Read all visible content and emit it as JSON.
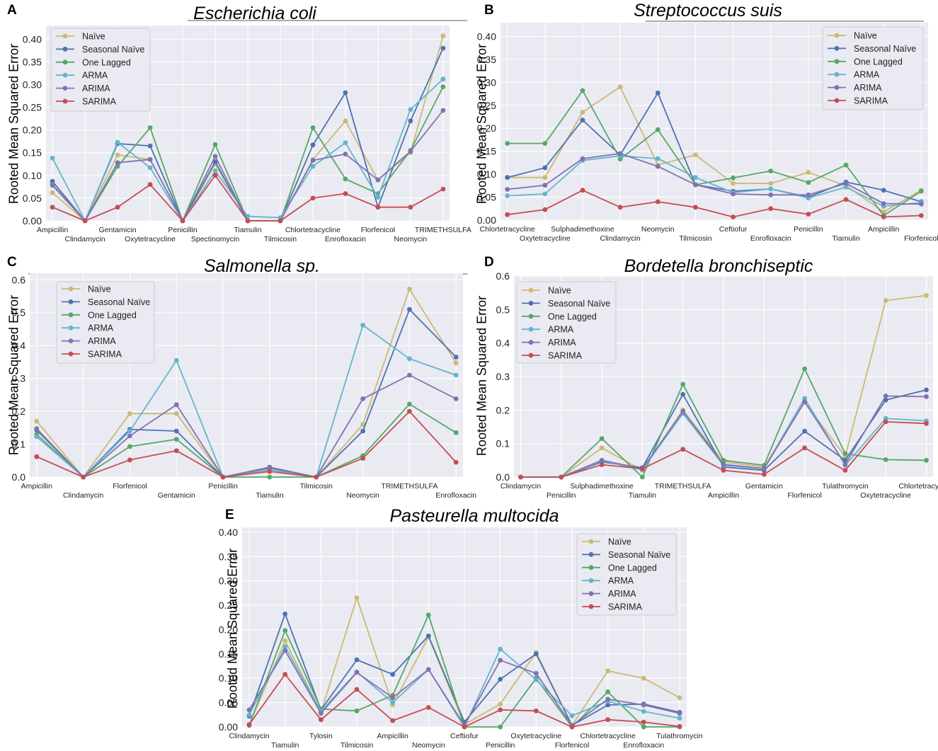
{
  "y_axis_label": "Rooted Mean Squared Error",
  "legend": [
    {
      "name": "Naïve",
      "color": "#ccb974"
    },
    {
      "name": "Seasonal Naïve",
      "color": "#4c72b0"
    },
    {
      "name": "One Lagged",
      "color": "#55a868"
    },
    {
      "name": "ARMA",
      "color": "#64b5cd"
    },
    {
      "name": "ARIMA",
      "color": "#8172b2"
    },
    {
      "name": "SARIMA",
      "color": "#c44e52"
    }
  ],
  "chart_data": [
    {
      "id": "A",
      "letter": "A",
      "type": "line",
      "title": "Escherichia coli",
      "ylabel": "Rooted Mean Squared Error",
      "ylim": [
        0,
        0.43
      ],
      "yticks": [
        "0.00",
        "0.05",
        "0.10",
        "0.15",
        "0.20",
        "0.25",
        "0.30",
        "0.35",
        "0.40"
      ],
      "categories": [
        "Ampicillin",
        "Clindamycin",
        "Gentamicin",
        "Oxytetracycline",
        "Penicillin",
        "Spectinomycin",
        "Tiamulin",
        "Tilmicosin",
        "Chlortetracycline",
        "Enrofloxacin",
        "Florfenicol",
        "Neomycin",
        "TRIMETHSULFA"
      ],
      "series": [
        {
          "name": "Naïve",
          "values": [
            0.062,
            0,
            0.145,
            0.135,
            0,
            0.125,
            0,
            0,
            0.135,
            0.22,
            0.09,
            0.15,
            0.407
          ]
        },
        {
          "name": "Seasonal Naïve",
          "values": [
            0.087,
            0,
            0.17,
            0.165,
            0,
            0.13,
            0,
            0,
            0.167,
            0.282,
            0.03,
            0.22,
            0.38
          ]
        },
        {
          "name": "One Lagged",
          "values": [
            0.08,
            0,
            0.12,
            0.205,
            0,
            0.168,
            0,
            0,
            0.205,
            0.092,
            0.06,
            0.155,
            0.295
          ]
        },
        {
          "name": "ARMA",
          "values": [
            0.138,
            0,
            0.173,
            0.117,
            0,
            0.11,
            0.01,
            0.007,
            0.12,
            0.172,
            0.052,
            0.245,
            0.312
          ]
        },
        {
          "name": "ARIMA",
          "values": [
            0.078,
            0,
            0.128,
            0.135,
            0,
            0.142,
            0,
            0,
            0.133,
            0.147,
            0.09,
            0.153,
            0.243
          ]
        },
        {
          "name": "SARIMA",
          "values": [
            0.03,
            0,
            0.03,
            0.08,
            0,
            0.1,
            0,
            0,
            0.05,
            0.06,
            0.03,
            0.03,
            0.07
          ]
        }
      ]
    },
    {
      "id": "B",
      "letter": "B",
      "type": "line",
      "title": "Streptococcus suis",
      "ylabel": "Rooted Mean Squared Error",
      "ylim": [
        0,
        0.43
      ],
      "yticks": [
        "0.00",
        "0.05",
        "0.10",
        "0.15",
        "0.20",
        "0.25",
        "0.30",
        "0.35",
        "0.40"
      ],
      "categories": [
        "Chlortetracycline",
        "Oxytetracycline",
        "Sulphadimethoxine",
        "Clindamycin",
        "Neomycin",
        "Tilmicosin",
        "Ceftiofur",
        "Enrofloxacin",
        "Penicillin",
        "Tiamulin",
        "Ampicillin",
        "Florfenicol"
      ],
      "series": [
        {
          "name": "Naïve",
          "values": [
            0.093,
            0.093,
            0.235,
            0.29,
            0.12,
            0.142,
            0.08,
            0.08,
            0.104,
            0.075,
            0.018,
            0.065
          ]
        },
        {
          "name": "Seasonal Naïve",
          "values": [
            0.093,
            0.114,
            0.218,
            0.142,
            0.277,
            0.077,
            0.063,
            0.068,
            0.05,
            0.083,
            0.065,
            0.04
          ]
        },
        {
          "name": "One Lagged",
          "values": [
            0.167,
            0.167,
            0.282,
            0.133,
            0.197,
            0.077,
            0.092,
            0.107,
            0.082,
            0.12,
            0.01,
            0.063
          ]
        },
        {
          "name": "ARMA",
          "values": [
            0.053,
            0.057,
            0.13,
            0.14,
            0.134,
            0.093,
            0.06,
            0.068,
            0.048,
            0.072,
            0.03,
            0.038
          ]
        },
        {
          "name": "ARIMA",
          "values": [
            0.067,
            0.076,
            0.134,
            0.145,
            0.117,
            0.077,
            0.057,
            0.055,
            0.055,
            0.08,
            0.036,
            0.035
          ]
        },
        {
          "name": "SARIMA",
          "values": [
            0.012,
            0.023,
            0.065,
            0.028,
            0.04,
            0.028,
            0.007,
            0.025,
            0.013,
            0.045,
            0.007,
            0.01
          ]
        }
      ]
    },
    {
      "id": "C",
      "letter": "C",
      "type": "line",
      "title": "Salmonella sp.",
      "ylabel": "Rooted Mean Squared Error",
      "ylim": [
        0,
        0.62
      ],
      "yticks": [
        "0.0",
        "0.1",
        "0.2",
        "0.3",
        "0.4",
        "0.5",
        "0.6"
      ],
      "categories": [
        "Ampicillin",
        "Clindamycin",
        "Florfenicol",
        "Gentamicin",
        "Penicillin",
        "Tiamulin",
        "Tilmicosin",
        "Neomycin",
        "TRIMETHSULFA",
        "Enrofloxacin"
      ],
      "series": [
        {
          "name": "Naïve",
          "values": [
            0.17,
            0,
            0.193,
            0.193,
            0,
            0.025,
            0,
            0.16,
            0.572,
            0.347
          ]
        },
        {
          "name": "Seasonal Naïve",
          "values": [
            0.143,
            0,
            0.145,
            0.14,
            0,
            0.03,
            0,
            0.14,
            0.51,
            0.365
          ]
        },
        {
          "name": "One Lagged",
          "values": [
            0.13,
            0,
            0.093,
            0.115,
            0,
            0,
            0,
            0.065,
            0.222,
            0.135
          ]
        },
        {
          "name": "ARMA",
          "values": [
            0.123,
            0,
            0.14,
            0.355,
            0,
            0.022,
            0,
            0.462,
            0.36,
            0.31
          ]
        },
        {
          "name": "ARIMA",
          "values": [
            0.147,
            0,
            0.125,
            0.22,
            0,
            0.028,
            0,
            0.238,
            0.31,
            0.238
          ]
        },
        {
          "name": "SARIMA",
          "values": [
            0.062,
            0,
            0.052,
            0.08,
            0,
            0.017,
            0,
            0.057,
            0.2,
            0.045
          ]
        }
      ]
    },
    {
      "id": "D",
      "letter": "D",
      "type": "line",
      "title": "Bordetella bronchiseptic",
      "ylabel": "Rooted Mean Squared Error",
      "ylim": [
        0,
        0.6
      ],
      "yticks": [
        "0.0",
        "0.1",
        "0.2",
        "0.3",
        "0.4",
        "0.5",
        "0.6"
      ],
      "categories": [
        "Clindamycin",
        "Penicillin",
        "Sulphadimethoxine",
        "Tiamulin",
        "TRIMETHSULFA",
        "Ampicillin",
        "Gentamicin",
        "Florfenicol",
        "Tulathromycin",
        "Oxytetracycline",
        "Chlortetracycline"
      ],
      "series": [
        {
          "name": "Naïve",
          "values": [
            0,
            0,
            0.087,
            0.02,
            0.2,
            0.045,
            0.03,
            0.223,
            0.062,
            0.527,
            0.542
          ]
        },
        {
          "name": "Seasonal Naïve",
          "values": [
            0,
            0,
            0.045,
            0.028,
            0.247,
            0.03,
            0.02,
            0.137,
            0.05,
            0.23,
            0.26
          ]
        },
        {
          "name": "One Lagged",
          "values": [
            0,
            0,
            0.115,
            0,
            0.277,
            0.05,
            0.035,
            0.323,
            0.07,
            0.052,
            0.05
          ]
        },
        {
          "name": "ARMA",
          "values": [
            0,
            0,
            0.048,
            0.022,
            0.19,
            0.035,
            0.025,
            0.235,
            0.035,
            0.175,
            0.168
          ]
        },
        {
          "name": "ARIMA",
          "values": [
            0,
            0,
            0.05,
            0.025,
            0.197,
            0.038,
            0.025,
            0.225,
            0.038,
            0.242,
            0.24
          ]
        },
        {
          "name": "SARIMA",
          "values": [
            0,
            0,
            0.037,
            0.025,
            0.083,
            0.02,
            0.008,
            0.087,
            0.02,
            0.165,
            0.16
          ]
        }
      ]
    },
    {
      "id": "E",
      "letter": "E",
      "type": "line",
      "title": "Pasteurella multocida",
      "ylabel": "Rooted Mean Squared Error",
      "ylim": [
        0,
        0.41
      ],
      "yticks": [
        "0.00",
        "0.05",
        "0.10",
        "0.15",
        "0.20",
        "0.25",
        "0.30",
        "0.35",
        "0.40"
      ],
      "categories": [
        "Clindamycin",
        "Tiamulin",
        "Tylosin",
        "Tilmicosin",
        "Ampicillin",
        "Neomycin",
        "Ceftiofur",
        "Penicillin",
        "Oxytetracycline",
        "Florfenicol",
        "Chlortetracycline",
        "Enrofloxacin",
        "Tulathromycin"
      ],
      "series": [
        {
          "name": "Naïve",
          "values": [
            0.005,
            0.177,
            0.03,
            0.265,
            0.045,
            0.185,
            0.005,
            0.047,
            0.153,
            0.003,
            0.115,
            0.1,
            0.06
          ]
        },
        {
          "name": "Seasonal Naïve",
          "values": [
            0.022,
            0.232,
            0.035,
            0.138,
            0.108,
            0.187,
            0.01,
            0.098,
            0.15,
            0.003,
            0.045,
            0.047,
            0.03
          ]
        },
        {
          "name": "One Lagged",
          "values": [
            0.003,
            0.198,
            0.037,
            0.033,
            0.065,
            0.23,
            0,
            0,
            0.1,
            0,
            0.072,
            0,
            0
          ]
        },
        {
          "name": "ARMA",
          "values": [
            0.025,
            0.165,
            0.032,
            0.113,
            0.05,
            0.118,
            0,
            0.16,
            0.097,
            0.023,
            0.053,
            0.032,
            0.018
          ]
        },
        {
          "name": "ARIMA",
          "values": [
            0.035,
            0.157,
            0.028,
            0.112,
            0.06,
            0.118,
            0.003,
            0.137,
            0.11,
            0.003,
            0.057,
            0.045,
            0.028
          ]
        },
        {
          "name": "SARIMA",
          "values": [
            0.005,
            0.108,
            0.015,
            0.077,
            0.013,
            0.04,
            0,
            0.035,
            0.033,
            0,
            0.015,
            0.01,
            0.001
          ]
        }
      ]
    }
  ]
}
